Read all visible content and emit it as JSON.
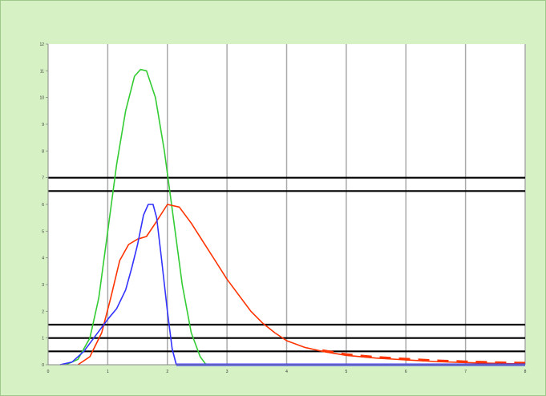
{
  "chart_data": {
    "type": "line",
    "title": "",
    "subtitle": "",
    "xlabel": "",
    "ylabel": "",
    "xlim": [
      0,
      8
    ],
    "ylim": [
      0,
      12
    ],
    "x_ticks": [
      0,
      1,
      2,
      3,
      4,
      5,
      6,
      7,
      8
    ],
    "y_ticks": [
      0,
      1,
      2,
      3,
      4,
      5,
      6,
      7,
      8,
      9,
      10,
      11,
      12
    ],
    "grid": "vertical",
    "legend_position": "bottom",
    "reference_lines": [
      7.0,
      6.5,
      1.5,
      1.0,
      0.5
    ],
    "colors": {
      "plot_background": "#ffffff",
      "frame_background": "#d6f2c4",
      "gridline": "#aaaaaa",
      "reference_line": "#000000"
    },
    "series": [
      {
        "name": "",
        "color": "#33cc33",
        "style": "solid",
        "points": [
          [
            0.3,
            0
          ],
          [
            0.5,
            0.2
          ],
          [
            0.7,
            1.0
          ],
          [
            0.85,
            2.5
          ],
          [
            1.0,
            5.0
          ],
          [
            1.15,
            7.5
          ],
          [
            1.3,
            9.5
          ],
          [
            1.45,
            10.8
          ],
          [
            1.55,
            11.05
          ],
          [
            1.65,
            11.0
          ],
          [
            1.8,
            10.0
          ],
          [
            1.95,
            8.0
          ],
          [
            2.1,
            5.5
          ],
          [
            2.25,
            3.0
          ],
          [
            2.4,
            1.2
          ],
          [
            2.55,
            0.3
          ],
          [
            2.65,
            0
          ]
        ]
      },
      {
        "name": "",
        "color": "#ff3300",
        "style": "solid",
        "points": [
          [
            0.5,
            0
          ],
          [
            0.7,
            0.3
          ],
          [
            0.9,
            1.2
          ],
          [
            1.05,
            2.5
          ],
          [
            1.2,
            3.9
          ],
          [
            1.35,
            4.5
          ],
          [
            1.5,
            4.7
          ],
          [
            1.65,
            4.8
          ],
          [
            1.8,
            5.3
          ],
          [
            2.0,
            6.0
          ],
          [
            2.2,
            5.9
          ],
          [
            2.4,
            5.3
          ],
          [
            2.6,
            4.6
          ],
          [
            2.8,
            3.9
          ],
          [
            3.0,
            3.2
          ],
          [
            3.2,
            2.6
          ],
          [
            3.4,
            2.0
          ],
          [
            3.6,
            1.55
          ],
          [
            3.8,
            1.2
          ],
          [
            4.0,
            0.9
          ],
          [
            4.3,
            0.65
          ],
          [
            4.6,
            0.5
          ],
          [
            5.0,
            0.35
          ],
          [
            5.5,
            0.25
          ],
          [
            6.0,
            0.18
          ],
          [
            6.5,
            0.12
          ],
          [
            7.0,
            0.08
          ],
          [
            7.5,
            0.05
          ],
          [
            8.0,
            0.03
          ]
        ]
      },
      {
        "name": "",
        "color": "#3333ff",
        "style": "solid",
        "points": [
          [
            0.2,
            0
          ],
          [
            0.4,
            0.1
          ],
          [
            0.6,
            0.5
          ],
          [
            0.8,
            1.1
          ],
          [
            1.0,
            1.7
          ],
          [
            1.15,
            2.1
          ],
          [
            1.3,
            2.8
          ],
          [
            1.4,
            3.6
          ],
          [
            1.5,
            4.5
          ],
          [
            1.6,
            5.6
          ],
          [
            1.68,
            6.0
          ],
          [
            1.76,
            6.0
          ],
          [
            1.82,
            5.5
          ],
          [
            1.9,
            4.0
          ],
          [
            2.0,
            2.0
          ],
          [
            2.08,
            0.6
          ],
          [
            2.15,
            0
          ]
        ]
      },
      {
        "name": "",
        "color": "#3333ff",
        "style": "baseline",
        "points": [
          [
            2.15,
            0
          ],
          [
            8.0,
            0
          ]
        ]
      }
    ]
  }
}
